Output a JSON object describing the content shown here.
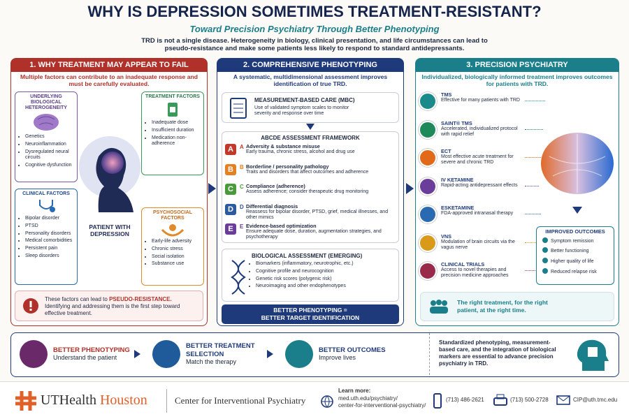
{
  "header": {
    "title": "WHY IS DEPRESSION SOMETIMES TREATMENT-RESISTANT?",
    "subtitle": "Toward Precision Psychiatry Through Better Phenotyping",
    "intro": "TRD is not a single disease. Heterogeneity in biology, clinical presentation, and life circumstances can lead to pseudo-resistance and make some patients less likely to respond to standard antidepressants."
  },
  "panel1": {
    "title": "1. WHY TREATMENT MAY APPEAR TO FAIL",
    "lead": "Multiple factors can contribute to an inadequate response and must be carefully evaluated.",
    "biology": {
      "title": "UNDERLYING BIOLOGICAL HETEROGENEITY",
      "items": [
        "Genetics",
        "Neuroinflammation",
        "Dysregulated neural circuits",
        "Cognitive dysfunction"
      ]
    },
    "treatment": {
      "title": "TREATMENT FACTORS",
      "items": [
        "Inadequate dose",
        "Insufficient duration",
        "Medication non-adherence"
      ]
    },
    "clinical": {
      "title": "CLINICAL FACTORS",
      "items": [
        "Bipolar disorder",
        "PTSD",
        "Personality disorders",
        "Medical comorbidities",
        "Persistent pain",
        "Sleep disorders"
      ]
    },
    "psychosocial": {
      "title": "PSYCHOSOCIAL FACTORS",
      "items": [
        "Early-life adversity",
        "Chronic stress",
        "Social isolation",
        "Substance use"
      ]
    },
    "patient": "PATIENT WITH DEPRESSION",
    "note": {
      "before": "These factors can lead to ",
      "highlight": "PSEUDO-RESISTANCE.",
      "after": " Identifying and addressing them is the first step toward effective treatment."
    }
  },
  "panel2": {
    "title": "2. COMPREHENSIVE PHENOTYPING",
    "lead": "A systematic, multidimensional assessment improves identification of true TRD.",
    "mbc": {
      "title": "MEASUREMENT-BASED CARE (MBC)",
      "text": "Use of validated symptom scales to monitor severity and response over time"
    },
    "abcde": {
      "title": "ABCDE ASSESSMENT FRAMEWORK",
      "items": [
        {
          "letter": "A",
          "title": "Adversity & substance misuse",
          "text": "Early trauma, chronic stress, alcohol and drug use"
        },
        {
          "letter": "B",
          "title": "Borderline / personality pathology",
          "text": "Traits and disorders that affect outcomes and adherence"
        },
        {
          "letter": "C",
          "title": "Compliance (adherence)",
          "text": "Assess adherence; consider therapeutic drug monitoring"
        },
        {
          "letter": "D",
          "title": "Differential diagnosis",
          "text": "Reassess for bipolar disorder, PTSD, grief, medical illnesses, and other mimics"
        },
        {
          "letter": "E",
          "title": "Evidence-based optimization",
          "text": "Ensure adequate dose, duration, augmentation strategies, and psychotherapy"
        }
      ]
    },
    "biological": {
      "title": "BIOLOGICAL ASSESSMENT (EMERGING)",
      "items": [
        "Biomarkers (inflammatory, neurotrophic, etc.)",
        "Cognitive profile and neurocognition",
        "Genetic risk scores (polygenic risk)",
        "Neuroimaging and other endophenotypes"
      ]
    },
    "result": {
      "line1": "BETTER PHENOTYPING =",
      "line2": "BETTER TARGET IDENTIFICATION"
    }
  },
  "panel3": {
    "title": "3. PRECISION PSYCHIATRY",
    "lead": "Individualized, biologically informed treatment improves outcomes for patients with TRD.",
    "treatments": [
      {
        "name": "TMS",
        "text": "Effective for many patients with TRD"
      },
      {
        "name": "SAINT® TMS",
        "text": "Accelerated, individualized protocol with rapid relief"
      },
      {
        "name": "ECT",
        "text": "Most effective acute treatment for severe and chronic TRD"
      },
      {
        "name": "IV KETAMINE",
        "text": "Rapid-acting antidepressant effects"
      },
      {
        "name": "ESKETAMINE",
        "text": "FDA-approved intranasal therapy"
      },
      {
        "name": "VNS",
        "text": "Modulation of brain circuits via the vagus nerve"
      },
      {
        "name": "CLINICAL TRIALS",
        "text": "Access to novel therapies and precision medicine approaches"
      }
    ],
    "outcomes": {
      "title": "IMPROVED OUTCOMES",
      "items": [
        "Symptom remission",
        "Better functioning",
        "Higher quality of life",
        "Reduced relapse risk"
      ]
    },
    "tagline": "The right treatment, for the right patient, at the right time."
  },
  "summary": {
    "steps": [
      {
        "title": "BETTER PHENOTYPING",
        "text": "Understand the patient"
      },
      {
        "title": "BETTER TREATMENT SELECTION",
        "text": "Match the therapy"
      },
      {
        "title": "BETTER OUTCOMES",
        "text": "Improve lives"
      }
    ],
    "text": "Standardized phenotyping, measurement-based care, and the integration of biological markers are essential to advance precision psychiatry in TRD."
  },
  "footer": {
    "brand": {
      "ut": "UTHealth",
      "place": "Houston"
    },
    "center": "Center for Interventional Psychiatry",
    "learn_more": "Learn more:",
    "url_lines": [
      "med.uth.edu/psychiatry/",
      "center-for-interventional-psychiatry/"
    ],
    "phone1": "(713) 486-2621",
    "phone2": "(713) 500-2728",
    "email": "CIP@uth.tmc.edu"
  }
}
